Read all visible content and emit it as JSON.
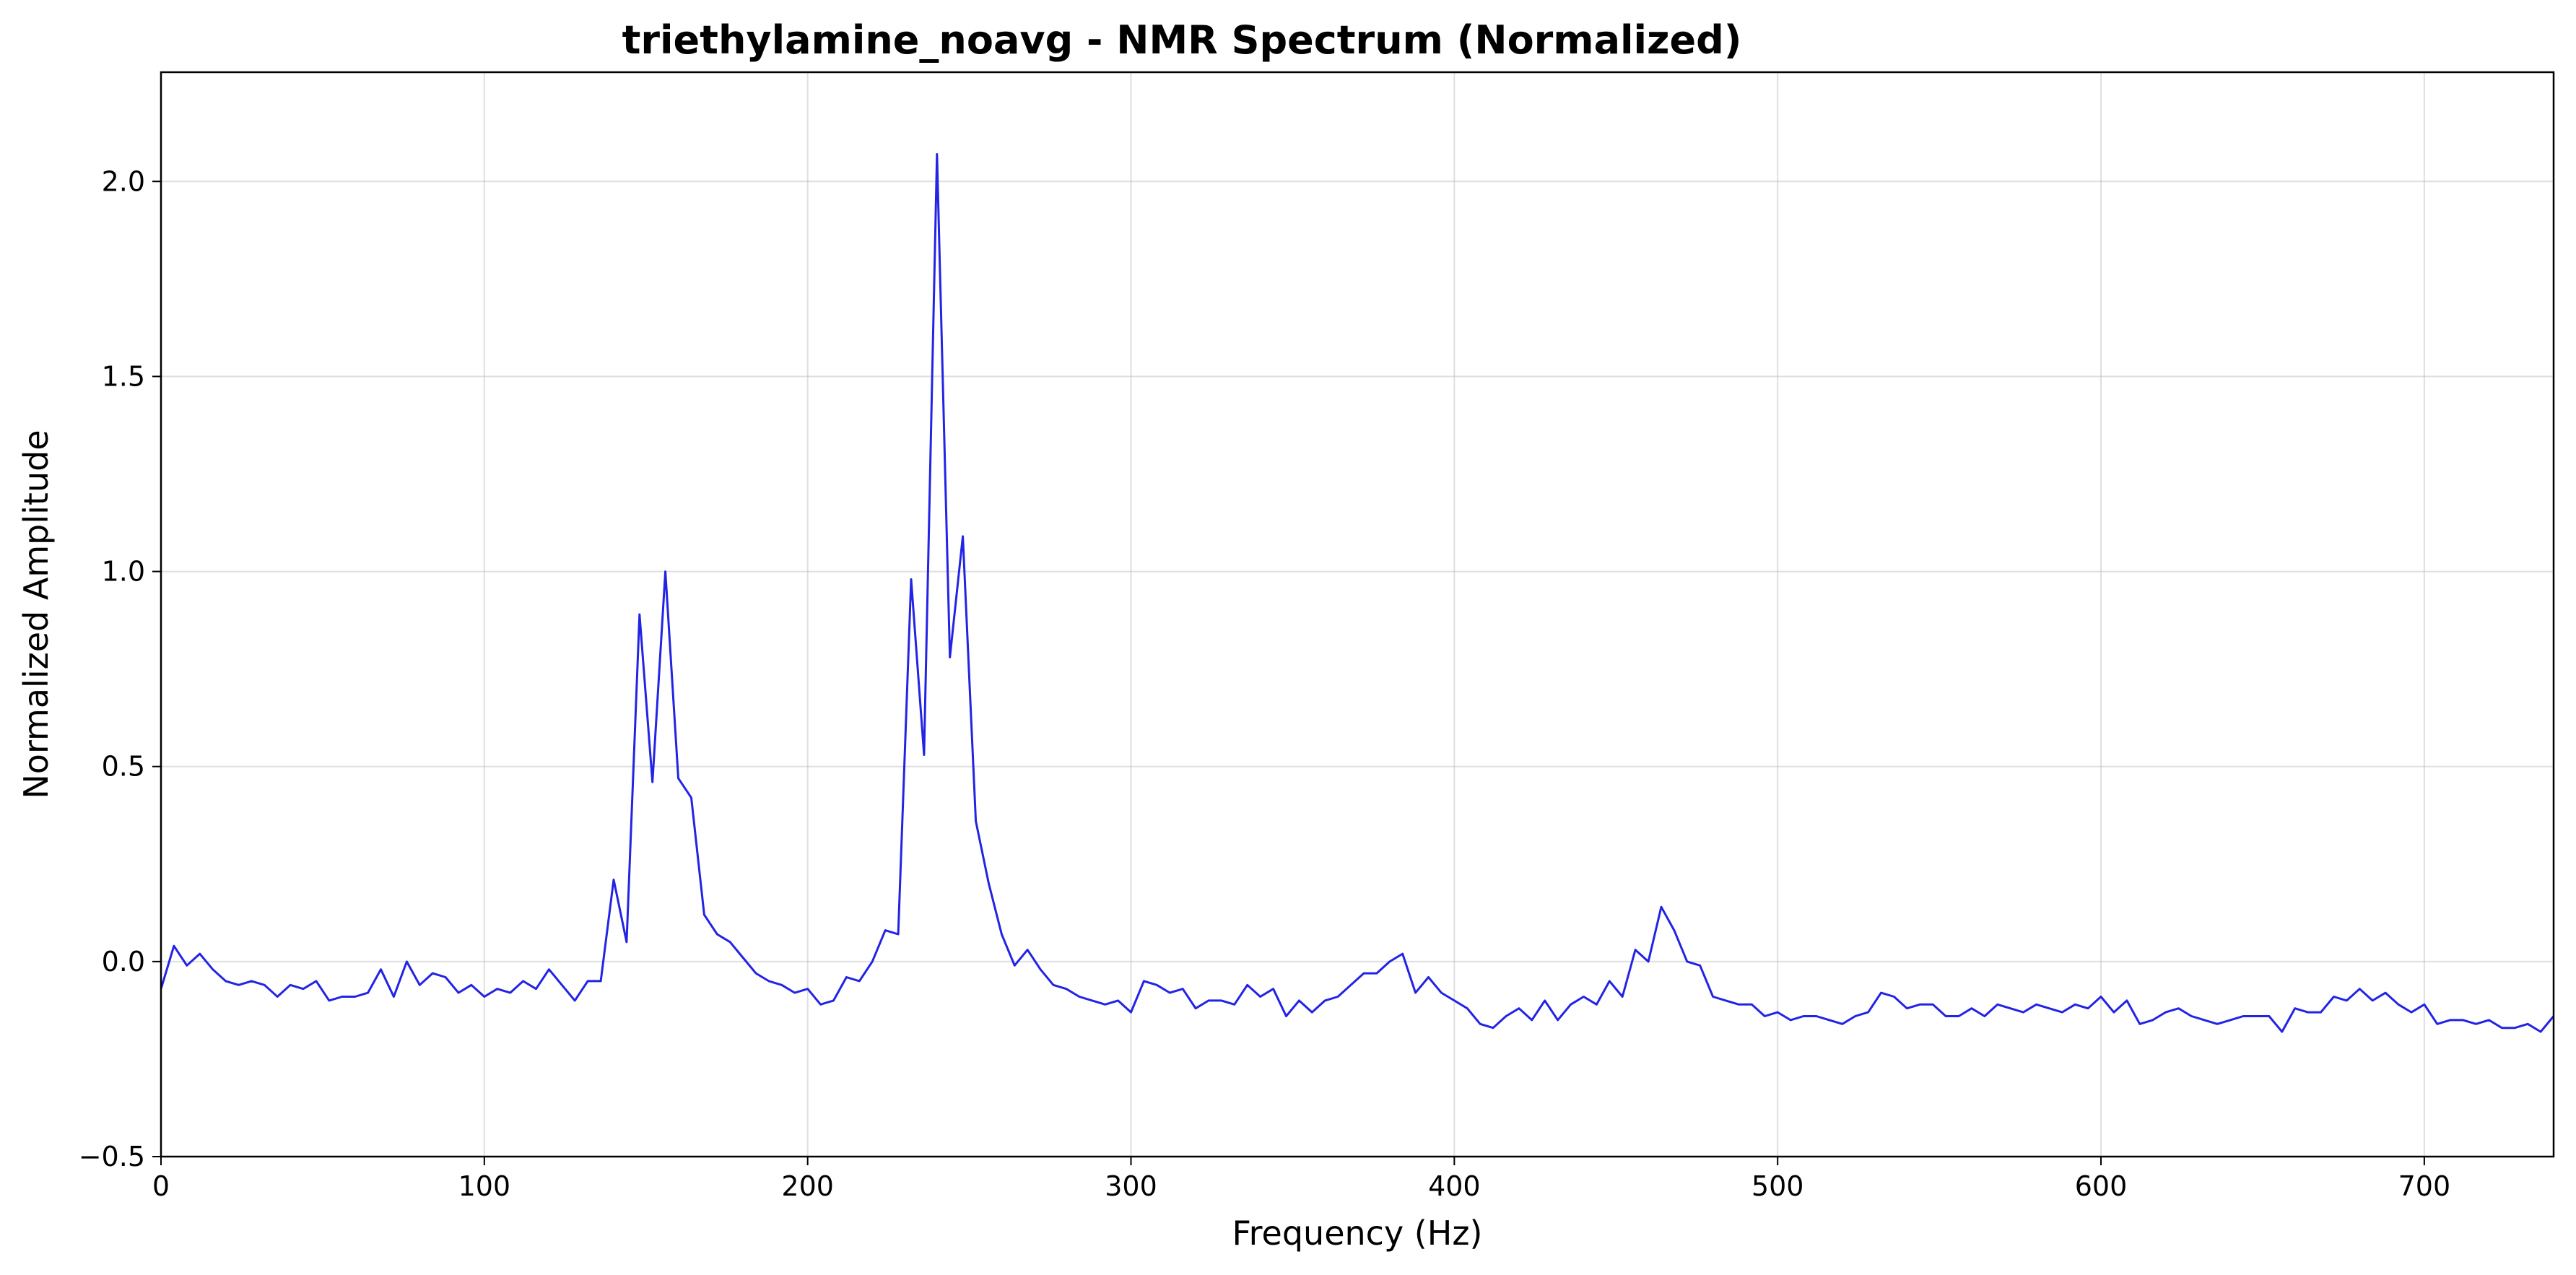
{
  "chart_data": {
    "type": "line",
    "title": "triethylamine_noavg - NMR Spectrum (Normalized)",
    "xlabel": "Frequency (Hz)",
    "ylabel": "Normalized Amplitude",
    "xlim": [
      0,
      740
    ],
    "ylim": [
      -0.5,
      2.28
    ],
    "xticks": [
      0,
      100,
      200,
      300,
      400,
      500,
      600,
      700
    ],
    "xtick_labels": [
      "0",
      "100",
      "200",
      "300",
      "400",
      "500",
      "600",
      "700"
    ],
    "yticks": [
      -0.5,
      0.0,
      0.5,
      1.0,
      1.5,
      2.0
    ],
    "ytick_labels": [
      "−0.5",
      "0.0",
      "0.5",
      "1.0",
      "1.5",
      "2.0"
    ],
    "grid": true,
    "legend": "none",
    "color": "#2323e6",
    "series": [
      {
        "x": [
          0,
          4,
          8,
          12,
          16,
          20,
          24,
          28,
          32,
          36,
          40,
          44,
          48,
          52,
          56,
          60,
          64,
          68,
          72,
          76,
          80,
          84,
          88,
          92,
          96,
          100,
          104,
          108,
          112,
          116,
          120,
          124,
          128,
          132,
          136,
          140,
          144,
          148,
          152,
          156,
          160,
          164,
          168,
          172,
          176,
          180,
          184,
          188,
          192,
          196,
          200,
          204,
          208,
          212,
          216,
          220,
          224,
          228,
          232,
          236,
          240,
          244,
          248,
          252,
          256,
          260,
          264,
          268,
          272,
          276,
          280,
          284,
          288,
          292,
          296,
          300,
          304,
          308,
          312,
          316,
          320,
          324,
          328,
          332,
          336,
          340,
          344,
          348,
          352,
          356,
          360,
          364,
          368,
          372,
          376,
          380,
          384,
          388,
          392,
          396,
          400,
          404,
          408,
          412,
          416,
          420,
          424,
          428,
          432,
          436,
          440,
          444,
          448,
          452,
          456,
          460,
          464,
          468,
          472,
          476,
          480,
          484,
          488,
          492,
          496,
          500,
          504,
          508,
          512,
          516,
          520,
          524,
          528,
          532,
          536,
          540,
          544,
          548,
          552,
          556,
          560,
          564,
          568,
          572,
          576,
          580,
          584,
          588,
          592,
          596,
          600,
          604,
          608,
          612,
          616,
          620,
          624,
          628,
          632,
          636,
          640,
          644,
          648,
          652,
          656,
          660,
          664,
          668,
          672,
          676,
          680,
          684,
          688,
          692,
          696,
          700,
          704,
          708,
          712,
          716,
          720,
          724,
          728,
          732,
          736,
          740
        ],
        "y": [
          -0.07,
          0.04,
          -0.01,
          0.02,
          -0.02,
          -0.05,
          -0.06,
          -0.05,
          -0.06,
          -0.09,
          -0.06,
          -0.07,
          -0.05,
          -0.1,
          -0.09,
          -0.09,
          -0.08,
          -0.02,
          -0.09,
          0.0,
          -0.06,
          -0.03,
          -0.04,
          -0.08,
          -0.06,
          -0.09,
          -0.07,
          -0.08,
          -0.05,
          -0.07,
          -0.02,
          -0.06,
          -0.1,
          -0.05,
          -0.05,
          0.21,
          0.05,
          0.89,
          0.46,
          1.0,
          0.47,
          0.42,
          0.12,
          0.07,
          0.05,
          0.01,
          -0.03,
          -0.05,
          -0.06,
          -0.08,
          -0.07,
          -0.11,
          -0.1,
          -0.04,
          -0.05,
          0.0,
          0.08,
          0.07,
          0.98,
          0.53,
          2.07,
          0.78,
          1.09,
          0.36,
          0.2,
          0.07,
          -0.01,
          0.03,
          -0.02,
          -0.06,
          -0.07,
          -0.09,
          -0.1,
          -0.11,
          -0.1,
          -0.13,
          -0.05,
          -0.06,
          -0.08,
          -0.07,
          -0.12,
          -0.1,
          -0.1,
          -0.11,
          -0.06,
          -0.09,
          -0.07,
          -0.14,
          -0.1,
          -0.13,
          -0.1,
          -0.09,
          -0.06,
          -0.03,
          -0.03,
          0.0,
          0.02,
          -0.08,
          -0.04,
          -0.08,
          -0.1,
          -0.12,
          -0.16,
          -0.17,
          -0.14,
          -0.12,
          -0.15,
          -0.1,
          -0.15,
          -0.11,
          -0.09,
          -0.11,
          -0.05,
          -0.09,
          0.03,
          0.0,
          0.14,
          0.08,
          0.0,
          -0.01,
          -0.09,
          -0.1,
          -0.11,
          -0.11,
          -0.14,
          -0.13,
          -0.15,
          -0.14,
          -0.14,
          -0.15,
          -0.16,
          -0.14,
          -0.13,
          -0.08,
          -0.09,
          -0.12,
          -0.11,
          -0.11,
          -0.14,
          -0.14,
          -0.12,
          -0.14,
          -0.11,
          -0.12,
          -0.13,
          -0.11,
          -0.12,
          -0.13,
          -0.11,
          -0.12,
          -0.09,
          -0.13,
          -0.1,
          -0.16,
          -0.15,
          -0.13,
          -0.12,
          -0.14,
          -0.15,
          -0.16,
          -0.15,
          -0.14,
          -0.14,
          -0.14,
          -0.18,
          -0.12,
          -0.13,
          -0.13,
          -0.09,
          -0.1,
          -0.07,
          -0.1,
          -0.08,
          -0.11,
          -0.13,
          -0.11,
          -0.16,
          -0.15,
          -0.15,
          -0.16,
          -0.15,
          -0.17,
          -0.17,
          -0.16,
          -0.18,
          -0.14
        ]
      }
    ]
  }
}
